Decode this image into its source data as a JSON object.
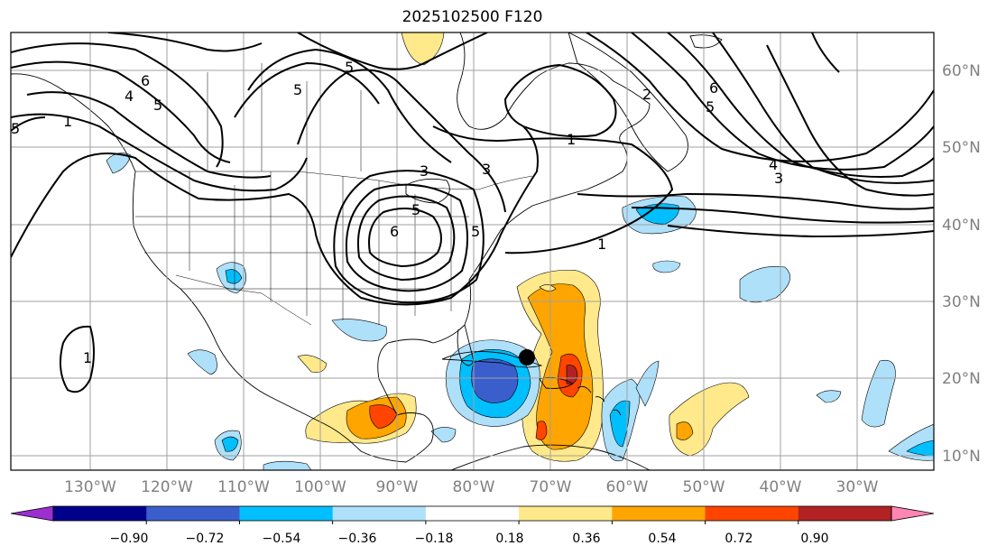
{
  "title": "2025102500 F120",
  "map": {
    "lon_labels": [
      "130°W",
      "120°W",
      "110°W",
      "100°W",
      "90°W",
      "80°W",
      "70°W",
      "60°W",
      "50°W",
      "40°W",
      "30°W"
    ],
    "lat_labels": [
      "60°N",
      "50°N",
      "40°N",
      "30°N",
      "20°N",
      "10°N"
    ],
    "contour_labels": [
      "6",
      "4",
      "5",
      "5",
      "5",
      "3",
      "1",
      "2",
      "6",
      "5",
      "4",
      "3",
      "1",
      "5",
      "6",
      "1",
      "3",
      "5",
      "1",
      "5"
    ],
    "colors": {
      "contour": "#000000",
      "grid": "#a0a0a0",
      "coast": "#000000"
    }
  },
  "colorbar": {
    "tick_labels": [
      "−0.90",
      "−0.72",
      "−0.54",
      "−0.36",
      "−0.18",
      "0.18",
      "0.36",
      "0.54",
      "0.72",
      "0.90"
    ],
    "colors": [
      "#9b30d0",
      "#00008b",
      "#3a5fcd",
      "#00bfff",
      "#aee0fa",
      "#ffffff",
      "#ffe98a",
      "#ffa500",
      "#ff4500",
      "#b22222",
      "#ff85b3"
    ]
  }
}
